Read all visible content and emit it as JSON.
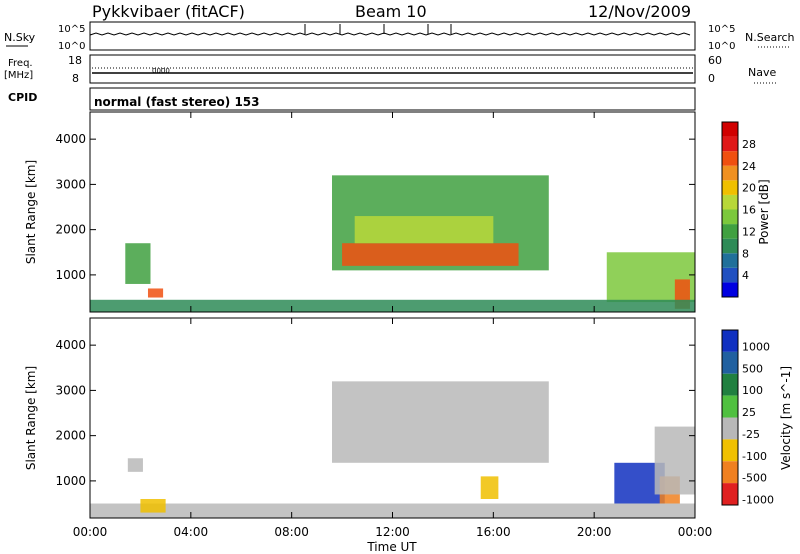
{
  "header": {
    "radar": "Pykkvibaer (fitACF)",
    "beam": "Beam 10",
    "date": "12/Nov/2009"
  },
  "noise_panel": {
    "left_label": "N.Sky",
    "right_label": "N.Search",
    "ticks": [
      "10^5",
      "10^0"
    ]
  },
  "freq_panel": {
    "left_label_1": "Freq.",
    "left_label_2": "[MHz]",
    "left_ticks": [
      "18",
      "8"
    ],
    "right_label": "Nave",
    "right_ticks": [
      "60",
      "0"
    ]
  },
  "cpid_panel": {
    "label": "CPID",
    "text": "normal (fast stereo) 153"
  },
  "chart_data": [
    {
      "type": "heatmap",
      "quantity": "power",
      "ylabel": "Slant Range [km]",
      "ylim": [
        180,
        4600
      ],
      "yticks": [
        "4000",
        "3000",
        "2000",
        "1000"
      ],
      "ytick_values": [
        4000,
        3000,
        2000,
        1000
      ],
      "colorbar": {
        "label": "Power [dB]",
        "ticks": [
          "28",
          "24",
          "20",
          "16",
          "12",
          "8",
          "4"
        ],
        "tick_values": [
          28,
          24,
          20,
          16,
          12,
          8,
          4
        ],
        "range": [
          0,
          32
        ],
        "colors": [
          "#0000e0",
          "#2050c0",
          "#20709a",
          "#2e8b57",
          "#40a040",
          "#7cc83c",
          "#b8d838",
          "#f0c000",
          "#f09020",
          "#f05010",
          "#e01818",
          "#d00000"
        ]
      },
      "regions": [
        {
          "t0": 9.6,
          "t1": 18.2,
          "r0": 1100,
          "r1": 3200,
          "level": 12
        },
        {
          "t0": 10.0,
          "t1": 17.0,
          "r0": 1200,
          "r1": 1700,
          "level": 26
        },
        {
          "t0": 10.5,
          "t1": 16.0,
          "r0": 1700,
          "r1": 2300,
          "level": 17
        },
        {
          "t0": 1.4,
          "t1": 2.4,
          "r0": 800,
          "r1": 1700,
          "level": 12
        },
        {
          "t0": 2.3,
          "t1": 2.9,
          "r0": 500,
          "r1": 700,
          "level": 24
        },
        {
          "t0": 20.5,
          "t1": 24.0,
          "r0": 400,
          "r1": 1500,
          "level": 14
        },
        {
          "t0": 23.2,
          "t1": 23.8,
          "r0": 250,
          "r1": 900,
          "level": 26
        },
        {
          "t0": 0.0,
          "t1": 24.0,
          "r0": 180,
          "r1": 450,
          "level": 8
        }
      ]
    },
    {
      "type": "heatmap",
      "quantity": "velocity",
      "ylabel": "Slant Range [km]",
      "xlabel": "Time UT",
      "ylim": [
        180,
        4600
      ],
      "yticks": [
        "4000",
        "3000",
        "2000",
        "1000"
      ],
      "ytick_values": [
        4000,
        3000,
        2000,
        1000
      ],
      "xticks": [
        "00:00",
        "04:00",
        "08:00",
        "12:00",
        "16:00",
        "20:00",
        "00:00"
      ],
      "xtick_values": [
        0,
        4,
        8,
        12,
        16,
        20,
        24
      ],
      "xlim": [
        0,
        24
      ],
      "colorbar": {
        "label": "Velocity [m s^-1]",
        "ticks": [
          "1000",
          "500",
          "100",
          "25",
          "-25",
          "-100",
          "-500",
          "-1000"
        ],
        "colors": [
          "#1030c0",
          "#2060a0",
          "#208040",
          "#50c040",
          "#b8b8b8",
          "#f0c000",
          "#f08020",
          "#e02020"
        ]
      },
      "regions": [
        {
          "t0": 9.6,
          "t1": 18.2,
          "r0": 1400,
          "r1": 3200,
          "class": 4
        },
        {
          "t0": 1.5,
          "t1": 2.1,
          "r0": 1200,
          "r1": 1500,
          "class": 4
        },
        {
          "t0": 20.8,
          "t1": 22.8,
          "r0": 500,
          "r1": 1400,
          "class": 0
        },
        {
          "t0": 22.6,
          "t1": 23.4,
          "r0": 500,
          "r1": 1100,
          "class": 6
        },
        {
          "t0": 22.4,
          "t1": 24.0,
          "r0": 700,
          "r1": 2200,
          "class": 4
        },
        {
          "t0": 15.5,
          "t1": 16.2,
          "r0": 600,
          "r1": 1100,
          "class": 5
        },
        {
          "t0": 0.0,
          "t1": 24.0,
          "r0": 180,
          "r1": 500,
          "class": 4
        },
        {
          "t0": 2.0,
          "t1": 3.0,
          "r0": 300,
          "r1": 600,
          "class": 5
        }
      ]
    }
  ]
}
